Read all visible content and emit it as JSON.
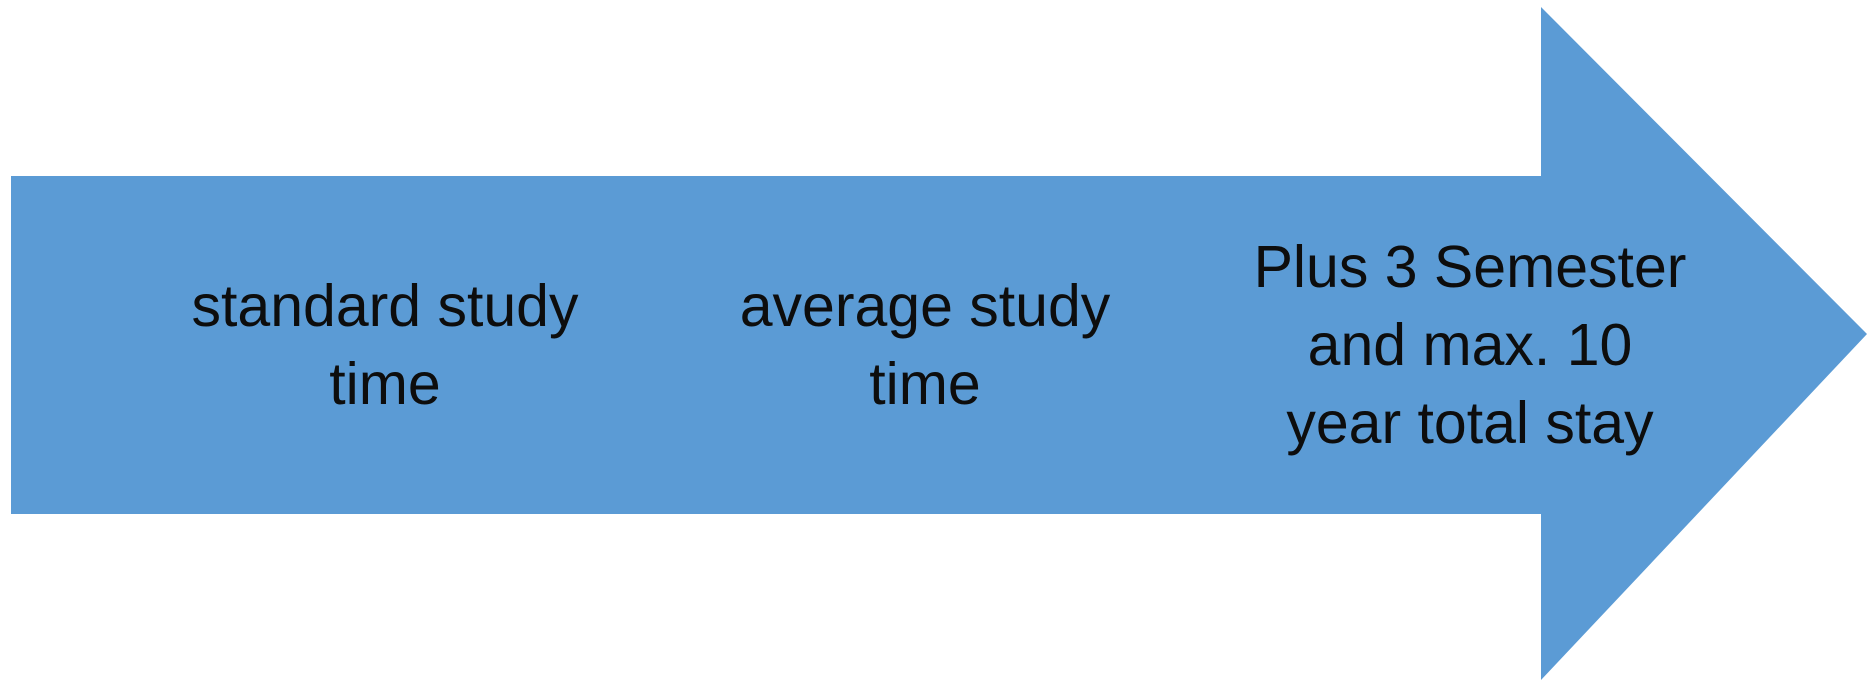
{
  "diagram": {
    "arrow_color": "#5b9bd5",
    "text_color": "#0d0d0d",
    "steps": [
      {
        "label": "standard study\ntime"
      },
      {
        "label": "average study\ntime"
      },
      {
        "label": "Plus 3 Semester\nand max. 10\nyear total stay"
      }
    ]
  }
}
